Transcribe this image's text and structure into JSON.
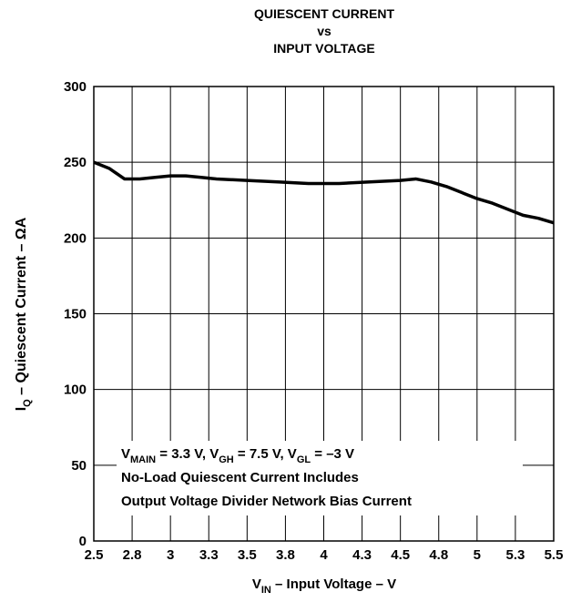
{
  "chart_data": {
    "type": "line",
    "title": [
      "QUIESCENT CURRENT",
      "vs",
      "INPUT VOLTAGE"
    ],
    "xlabel": [
      "V",
      "IN",
      " – Input Voltage – V"
    ],
    "ylabel": [
      "I",
      "Q",
      " – Quiescent Current – ΩA"
    ],
    "annotations": [
      [
        "V",
        "MAIN",
        " = 3.3 V, V",
        "GH",
        " = 7.5 V, V",
        "GL",
        " = –3 V"
      ],
      [
        "No-Load Quiescent Current Includes"
      ],
      [
        "Output Voltage Divider Network Bias Current"
      ]
    ],
    "x": [
      2.5,
      2.6,
      2.7,
      2.8,
      2.9,
      3.0,
      3.1,
      3.2,
      3.3,
      3.5,
      3.7,
      3.9,
      4.1,
      4.3,
      4.5,
      4.6,
      4.7,
      4.8,
      4.9,
      5.0,
      5.1,
      5.2,
      5.3,
      5.4,
      5.5
    ],
    "series": [
      {
        "name": "IQ",
        "color": "#000000",
        "values": [
          250,
          246,
          239,
          239,
          240,
          241,
          241,
          240,
          239,
          238,
          237,
          236,
          236,
          237,
          238,
          239,
          237,
          234,
          230,
          226,
          223,
          219,
          215,
          213,
          210
        ]
      }
    ],
    "xlim": [
      2.5,
      5.5
    ],
    "xticks": [
      2.5,
      {
        "value": 2.75,
        "label": "2.8"
      },
      3,
      {
        "value": 3.25,
        "label": "3.3"
      },
      3.5,
      {
        "value": 3.75,
        "label": "3.8"
      },
      4,
      {
        "value": 4.25,
        "label": "4.3"
      },
      4.5,
      {
        "value": 4.75,
        "label": "4.8"
      },
      5,
      {
        "value": 5.25,
        "label": "5.3"
      },
      5.5
    ],
    "ylim": [
      0,
      300
    ],
    "yticks": [
      0,
      50,
      100,
      150,
      200,
      250,
      300
    ],
    "grid": true
  }
}
